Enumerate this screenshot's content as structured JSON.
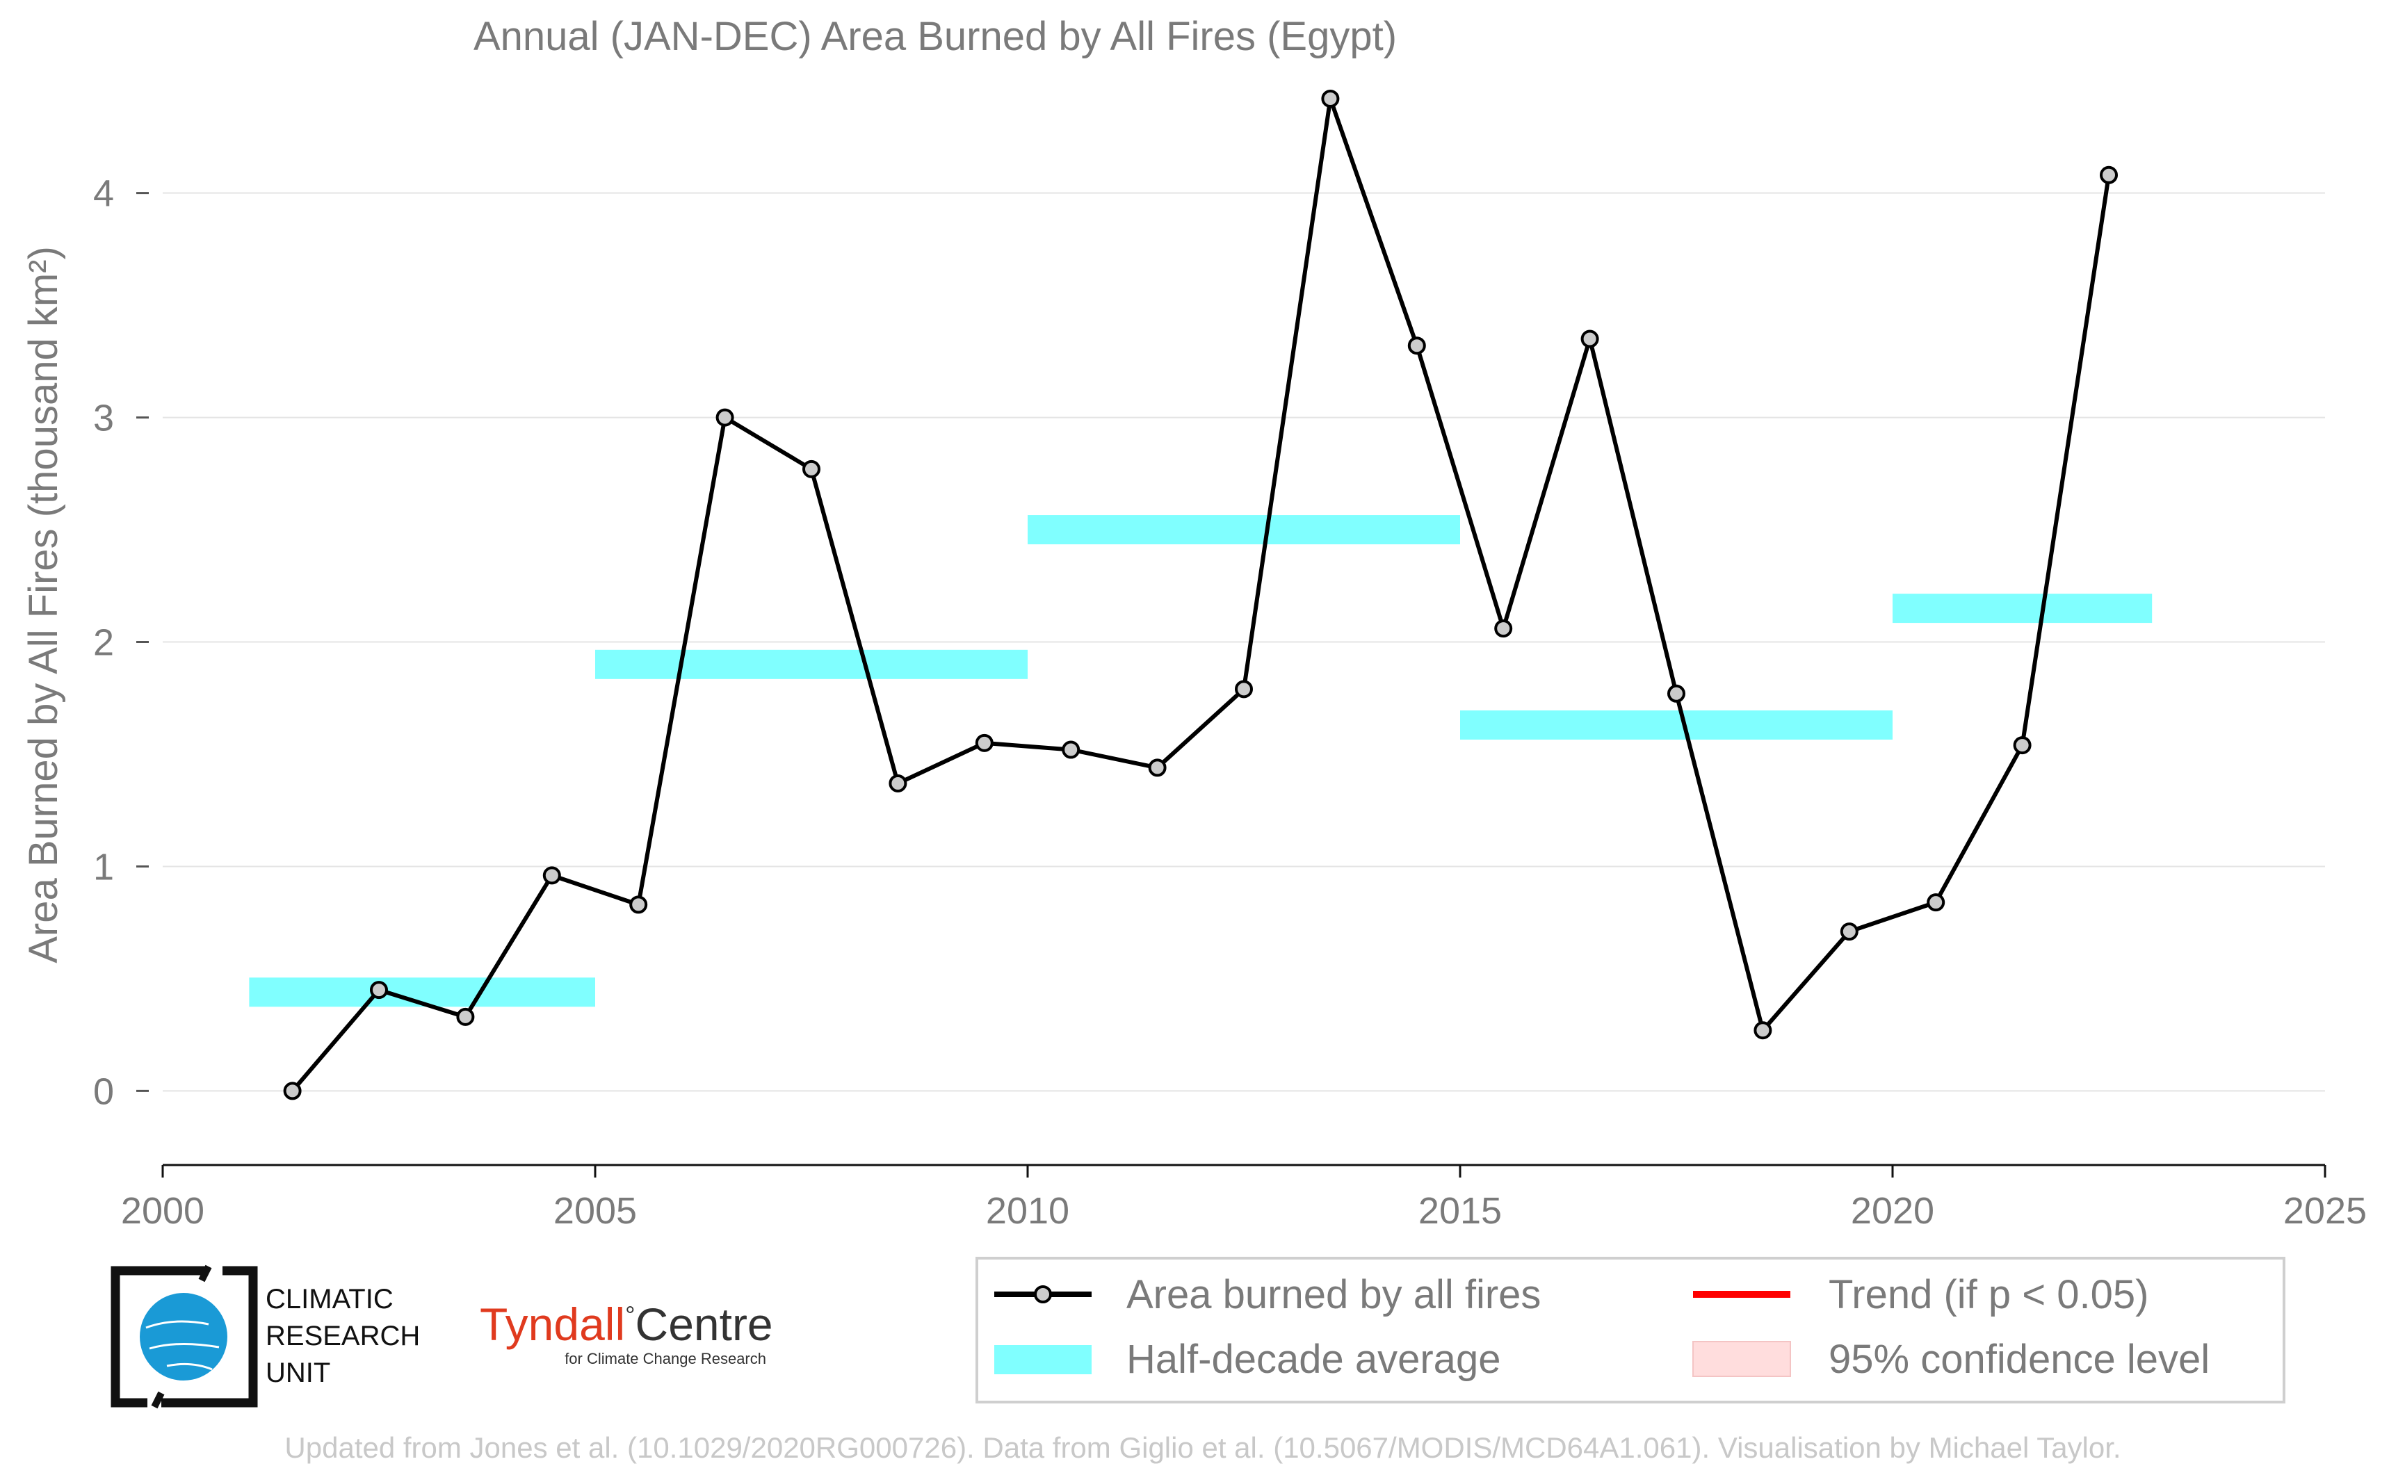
{
  "chart_data": {
    "type": "line",
    "title": "Annual (JAN-DEC) Area Burned by All Fires (Egypt)",
    "ylabel": "Area Burned by All Fires (thousand km²)",
    "xlabel": "",
    "xlim": [
      2000,
      2025
    ],
    "ylim": [
      -0.33,
      4.55
    ],
    "x_ticks": [
      2000,
      2005,
      2010,
      2015,
      2020,
      2025
    ],
    "y_ticks": [
      0,
      1,
      2,
      3,
      4
    ],
    "grid": "horizontal",
    "series": [
      {
        "name": "Area burned by all fires",
        "color": "#000000",
        "marker_color": "#cccccc",
        "x": [
          2001.5,
          2002.5,
          2003.5,
          2004.5,
          2005.5,
          2006.5,
          2007.5,
          2008.5,
          2009.5,
          2010.5,
          2011.5,
          2012.5,
          2013.5,
          2014.5,
          2015.5,
          2016.5,
          2017.5,
          2018.5,
          2019.5,
          2020.5,
          2021.5,
          2022.5
        ],
        "values": [
          0.0,
          0.45,
          0.33,
          0.96,
          0.83,
          3.0,
          2.77,
          1.37,
          1.55,
          1.52,
          1.44,
          1.79,
          4.42,
          3.32,
          2.06,
          3.35,
          1.77,
          0.27,
          0.71,
          0.84,
          1.54,
          4.08
        ]
      }
    ],
    "half_decade_average": {
      "name": "Half-decade average",
      "color": "#80ffff",
      "segments": [
        {
          "x": [
            2001,
            2005
          ],
          "value": 0.44
        },
        {
          "x": [
            2005,
            2010
          ],
          "value": 1.9
        },
        {
          "x": [
            2010,
            2015
          ],
          "value": 2.5
        },
        {
          "x": [
            2015,
            2020
          ],
          "value": 1.63
        },
        {
          "x": [
            2020,
            2023
          ],
          "value": 2.15
        }
      ]
    },
    "legend": {
      "placement": "bottom-right",
      "entries": [
        {
          "label": "Area burned by all fires",
          "kind": "line-marker",
          "color": "#000000"
        },
        {
          "label": "Trend (if p < 0.05)",
          "kind": "line",
          "color": "#ff0000"
        },
        {
          "label": "Half-decade average",
          "kind": "band",
          "color": "#80ffff"
        },
        {
          "label": "95% confidence level",
          "kind": "patch",
          "color": "#ffdddd"
        }
      ]
    }
  },
  "logos": {
    "cru": {
      "line1": "CLIMATIC",
      "line2": "RESEARCH",
      "line3": "UNIT",
      "color": "#1a9ad6"
    },
    "tyndall": {
      "main": "Tyndall",
      "degree": "°",
      "centre": "Centre",
      "sub": "for Climate Change Research",
      "color": "#e03a1e"
    }
  },
  "footer": "Updated from Jones et al. (10.1029/2020RG000726). Data from Giglio et al. (10.5067/MODIS/MCD64A1.061). Visualisation by Michael Taylor."
}
